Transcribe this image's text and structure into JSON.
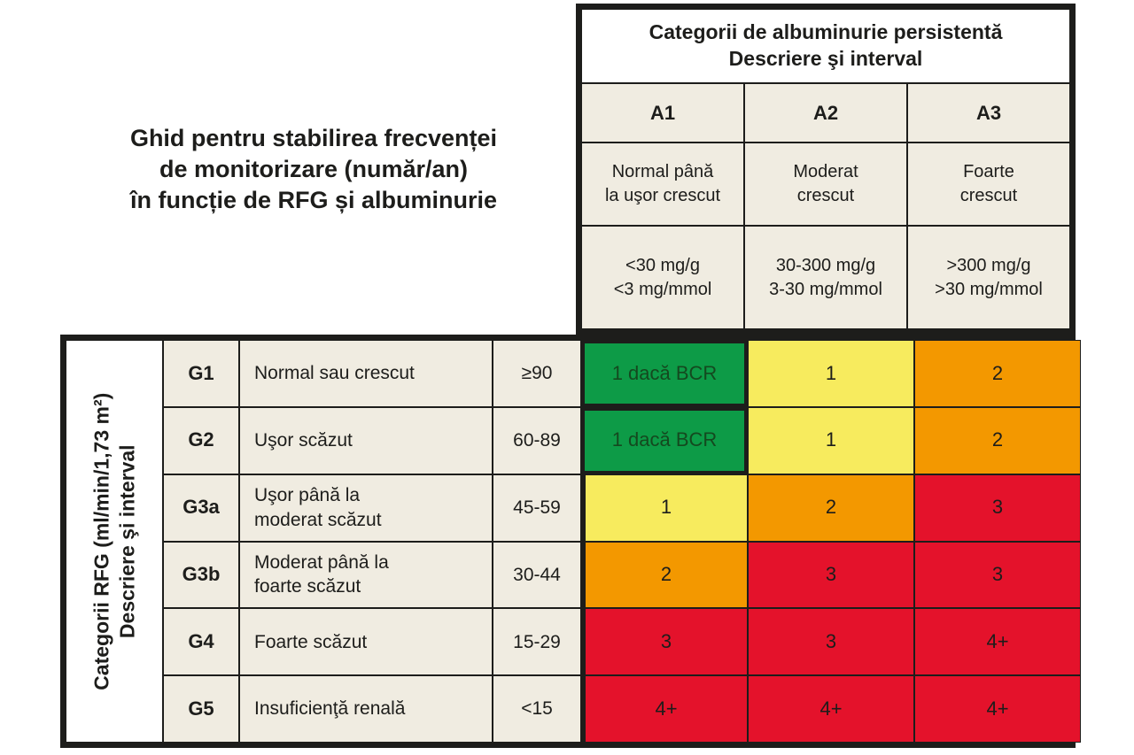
{
  "title": "Ghid pentru stabilirea frecvenței\nde monitorizare (număr/an)\nîn funcție de RFG și albuminurie",
  "albuminuria": {
    "header": "Categorii de albuminurie persistentă\nDescriere şi interval",
    "columns": [
      {
        "code": "A1",
        "description": "Normal până\nla uşor crescut",
        "range": "<30 mg/g\n<3 mg/mmol"
      },
      {
        "code": "A2",
        "description": "Moderat\ncrescut",
        "range": "30-300 mg/g\n3-30 mg/mmol"
      },
      {
        "code": "A3",
        "description": "Foarte\ncrescut",
        "range": ">300 mg/g\n>30 mg/mmol"
      }
    ]
  },
  "rfg": {
    "axis_label": "Categorii RFG (ml/min/1,73 m²)\nDescriere şi interval",
    "rows": [
      {
        "code": "G1",
        "description": "Normal sau crescut",
        "range": "≥90",
        "cells": [
          {
            "label": "1 dacă BCR",
            "color": "green"
          },
          {
            "label": "1",
            "color": "yellow"
          },
          {
            "label": "2",
            "color": "orange"
          }
        ]
      },
      {
        "code": "G2",
        "description": "Uşor scăzut",
        "range": "60-89",
        "cells": [
          {
            "label": "1 dacă BCR",
            "color": "green"
          },
          {
            "label": "1",
            "color": "yellow"
          },
          {
            "label": "2",
            "color": "orange"
          }
        ]
      },
      {
        "code": "G3a",
        "description": "Uşor până la\nmoderat scăzut",
        "range": "45-59",
        "cells": [
          {
            "label": "1",
            "color": "yellow"
          },
          {
            "label": "2",
            "color": "orange"
          },
          {
            "label": "3",
            "color": "red"
          }
        ]
      },
      {
        "code": "G3b",
        "description": "Moderat până la\nfoarte scăzut",
        "range": "30-44",
        "cells": [
          {
            "label": "2",
            "color": "orange"
          },
          {
            "label": "3",
            "color": "red"
          },
          {
            "label": "3",
            "color": "red"
          }
        ]
      },
      {
        "code": "G4",
        "description": "Foarte scăzut",
        "range": "15-29",
        "cells": [
          {
            "label": "3",
            "color": "red"
          },
          {
            "label": "3",
            "color": "red"
          },
          {
            "label": "4+",
            "color": "red"
          }
        ]
      },
      {
        "code": "G5",
        "description": "Insuficienţă renală",
        "range": "<15",
        "cells": [
          {
            "label": "4+",
            "color": "red"
          },
          {
            "label": "4+",
            "color": "red"
          },
          {
            "label": "4+",
            "color": "red"
          }
        ]
      }
    ]
  },
  "colors": {
    "green": "#0D9B47",
    "green_text": "#14491F",
    "yellow": "#F7EB5E",
    "orange": "#F39800",
    "red": "#E4122B",
    "cream": "#F0ECE1",
    "border": "#1D1D1B"
  },
  "chart_data": {
    "type": "heatmap",
    "title": "Ghid pentru stabilirea frecvenței de monitorizare (număr/an) în funcție de RFG și albuminurie",
    "x_axis_title": "Categorii de albuminurie persistentă — Descriere şi interval",
    "y_axis_title": "Categorii RFG (ml/min/1,73 m²) — Descriere şi interval",
    "x_categories": [
      "A1: Normal până la uşor crescut (<30 mg/g, <3 mg/mmol)",
      "A2: Moderat crescut (30-300 mg/g, 3-30 mg/mmol)",
      "A3: Foarte crescut (>300 mg/g, >30 mg/mmol)"
    ],
    "y_categories": [
      "G1: Normal sau crescut (≥90)",
      "G2: Uşor scăzut (60-89)",
      "G3a: Uşor până la moderat scăzut (45-59)",
      "G3b: Moderat până la foarte scăzut (30-44)",
      "G4: Foarte scăzut (15-29)",
      "G5: Insuficienţă renală (<15)"
    ],
    "values": [
      [
        "1 dacă BCR",
        "1",
        "2"
      ],
      [
        "1 dacă BCR",
        "1",
        "2"
      ],
      [
        "1",
        "2",
        "3"
      ],
      [
        "2",
        "3",
        "3"
      ],
      [
        "3",
        "3",
        "4+"
      ],
      [
        "4+",
        "4+",
        "4+"
      ]
    ],
    "cell_colors": [
      [
        "green",
        "yellow",
        "orange"
      ],
      [
        "green",
        "yellow",
        "orange"
      ],
      [
        "yellow",
        "orange",
        "red"
      ],
      [
        "orange",
        "red",
        "red"
      ],
      [
        "red",
        "red",
        "red"
      ],
      [
        "red",
        "red",
        "red"
      ]
    ],
    "legend_position": "none",
    "grid": true
  }
}
